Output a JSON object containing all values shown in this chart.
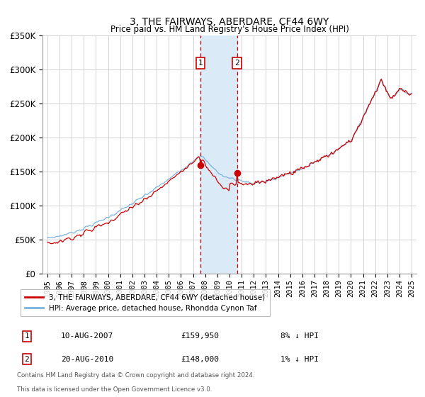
{
  "title": "3, THE FAIRWAYS, ABERDARE, CF44 6WY",
  "subtitle": "Price paid vs. HM Land Registry's House Price Index (HPI)",
  "legend_line1": "3, THE FAIRWAYS, ABERDARE, CF44 6WY (detached house)",
  "legend_line2": "HPI: Average price, detached house, Rhondda Cynon Taf",
  "sale1_label": "1",
  "sale1_date": "10-AUG-2007",
  "sale1_price": "£159,950",
  "sale1_hpi": "8% ↓ HPI",
  "sale2_label": "2",
  "sale2_date": "20-AUG-2010",
  "sale2_price": "£148,000",
  "sale2_hpi": "1% ↓ HPI",
  "footer1": "Contains HM Land Registry data © Crown copyright and database right 2024.",
  "footer2": "This data is licensed under the Open Government Licence v3.0.",
  "hpi_color": "#7ab3e0",
  "price_color": "#cc0000",
  "sale_dot_color": "#cc0000",
  "shading_color": "#daeaf6",
  "vline_color": "#cc0000",
  "grid_color": "#cccccc",
  "background_color": "#ffffff",
  "ylim": [
    0,
    350000
  ],
  "yticks": [
    0,
    50000,
    100000,
    150000,
    200000,
    250000,
    300000,
    350000
  ],
  "sale1_x": 2007.617,
  "sale2_x": 2010.617,
  "sale1_y": 159950,
  "sale2_y": 148000,
  "xlim_left": 1994.6,
  "xlim_right": 2025.4
}
